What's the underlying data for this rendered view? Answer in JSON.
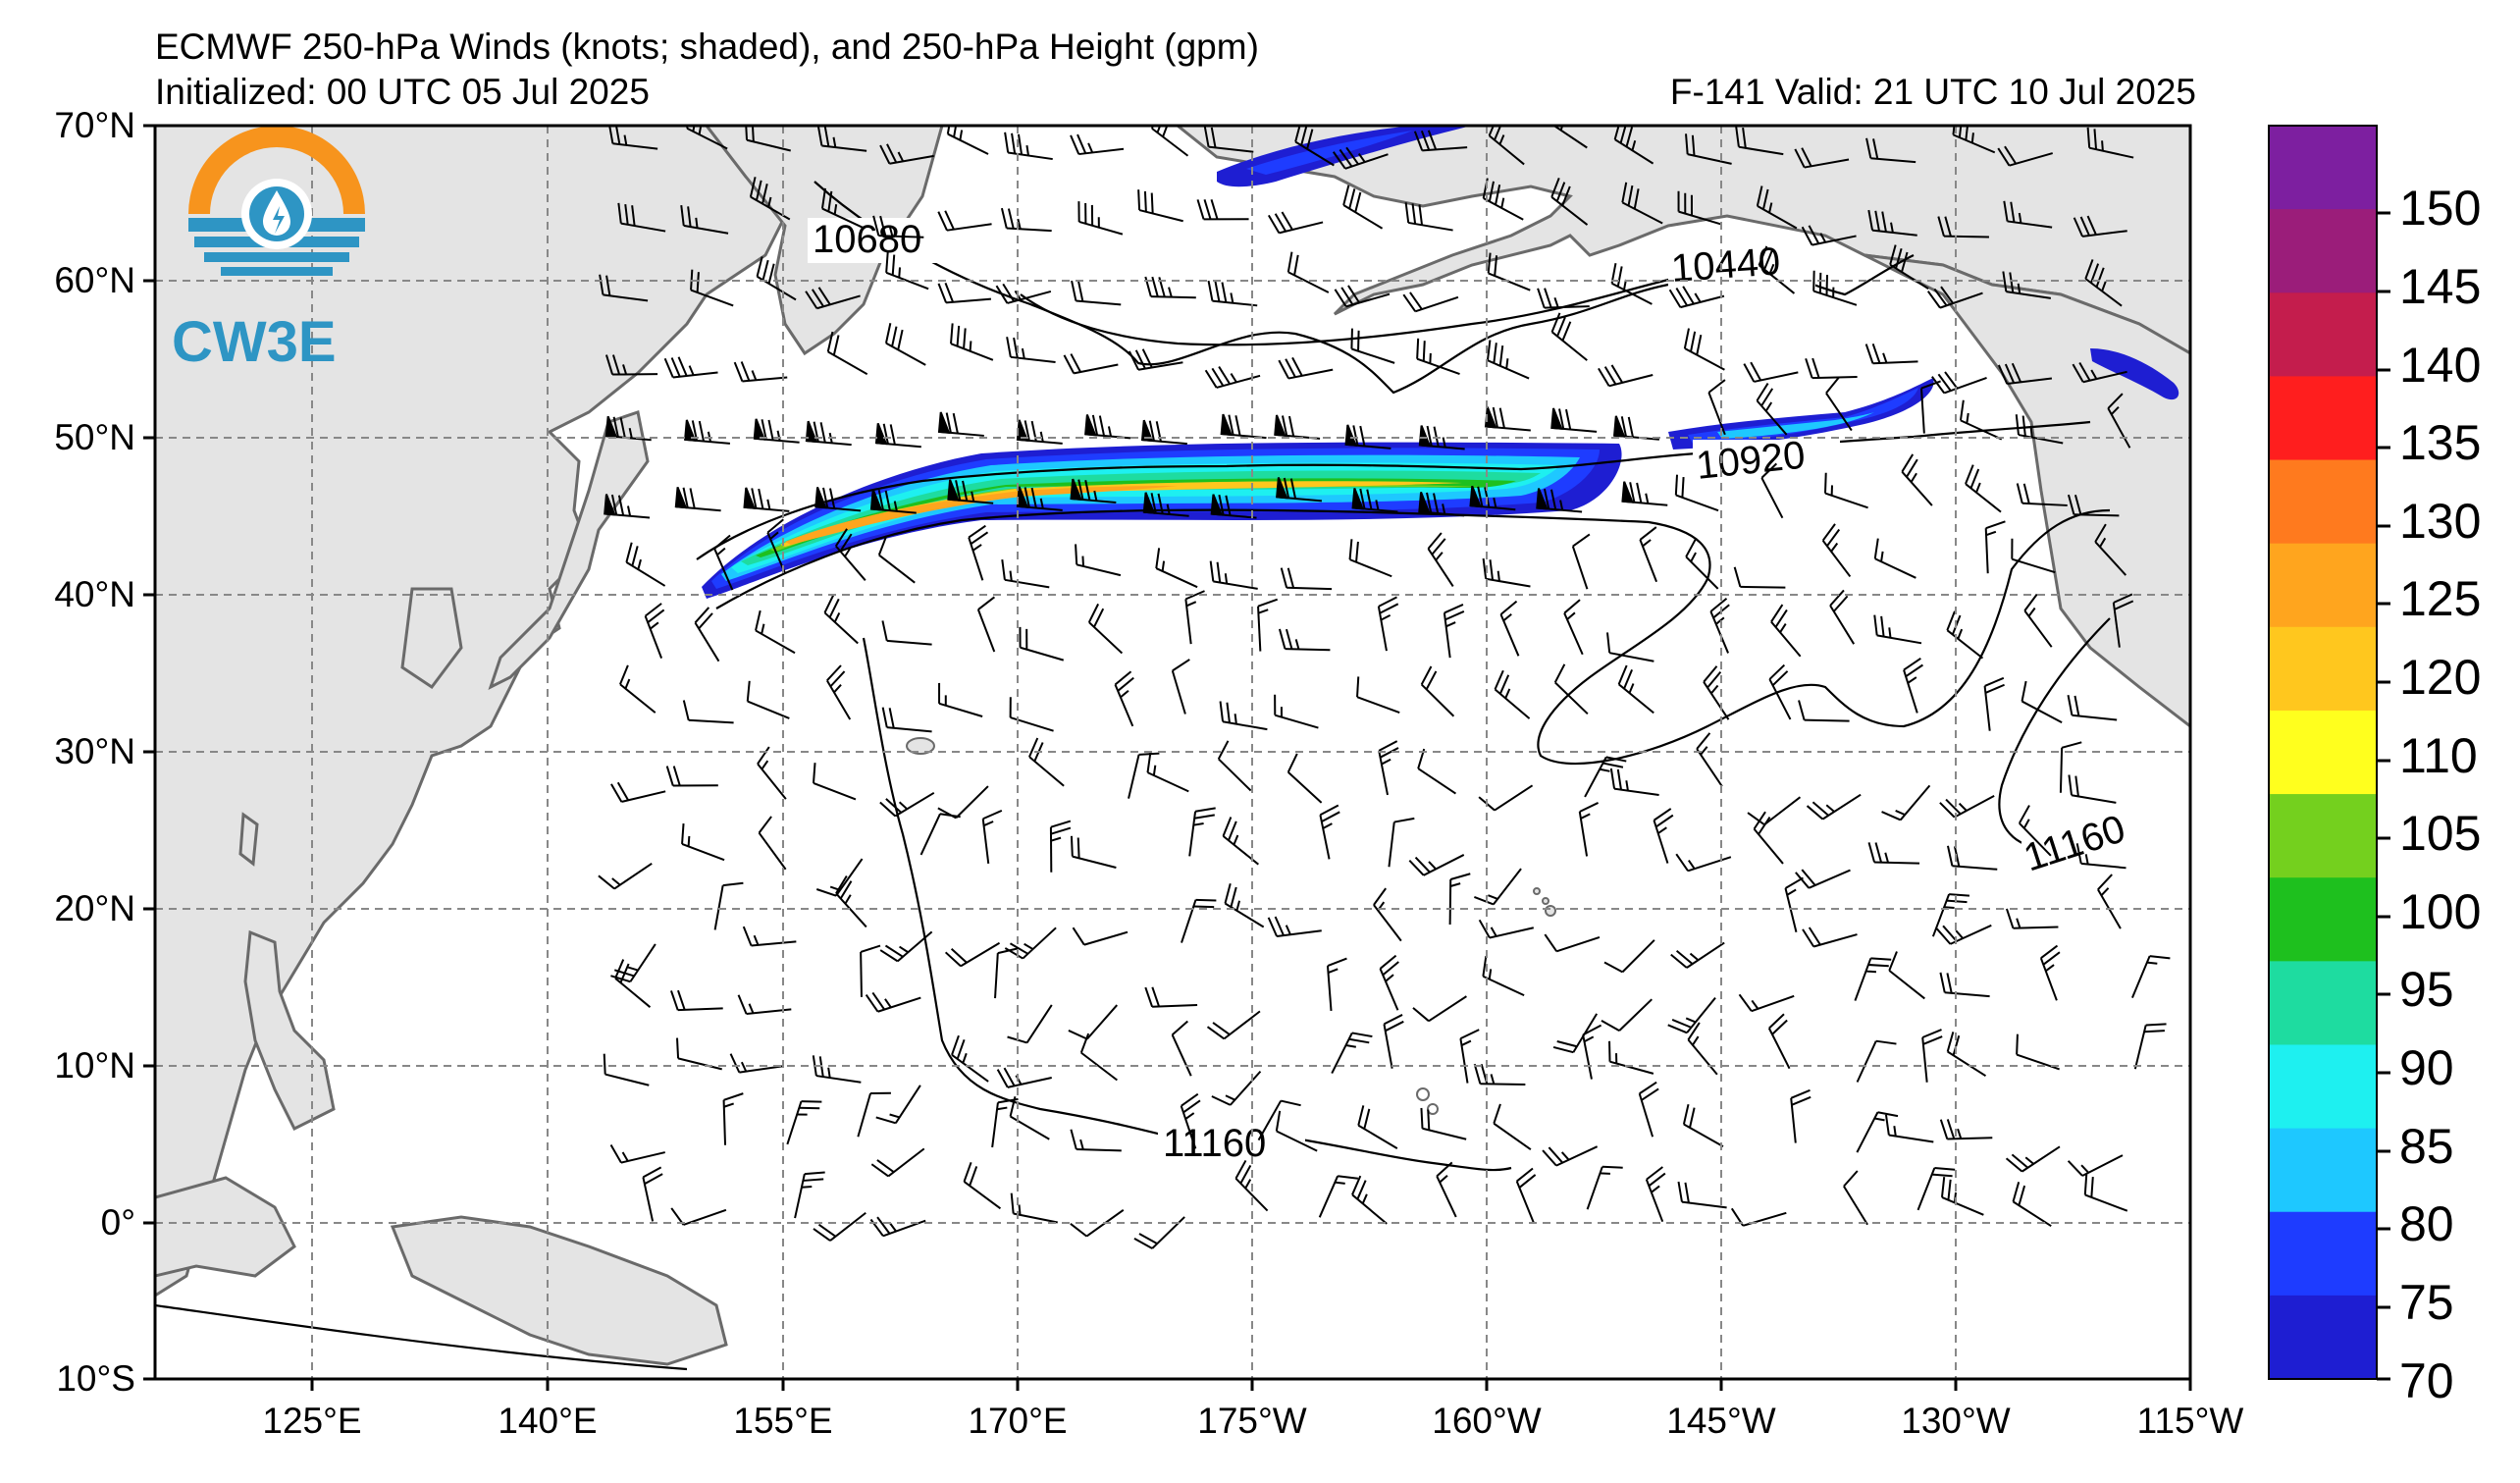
{
  "header": {
    "title": "ECMWF 250-hPa Winds (knots; shaded), and 250-hPa Height (gpm)",
    "initialized": "Initialized: 00 UTC 05 Jul 2025",
    "valid": "F-141  Valid: 21 UTC 10 Jul 2025"
  },
  "logo": {
    "text": "CW3E",
    "icon": "cw3e-sun-drop-logo-icon"
  },
  "axes": {
    "lat_labels": [
      "70°N",
      "60°N",
      "50°N",
      "40°N",
      "30°N",
      "20°N",
      "10°N",
      "0°",
      "10°S"
    ],
    "lon_labels": [
      "125°E",
      "140°E",
      "155°E",
      "170°E",
      "175°W",
      "160°W",
      "145°W",
      "130°W",
      "115°W"
    ]
  },
  "contours": {
    "labels": [
      "10680",
      "10440",
      "10920",
      "11160",
      "11160"
    ]
  },
  "colorbar": {
    "labels": [
      "150",
      "145",
      "140",
      "135",
      "130",
      "125",
      "120",
      "110",
      "105",
      "100",
      "95",
      "90",
      "85",
      "80",
      "75",
      "70"
    ],
    "colors": [
      "#7d1fa0",
      "#9b1d7a",
      "#c41d4d",
      "#ff1e1e",
      "#ff7a1e",
      "#ffa51e",
      "#ffc71e",
      "#ffff1e",
      "#74d01e",
      "#1ec01e",
      "#1edca0",
      "#1ef0f0",
      "#1ec8ff",
      "#1e3cff",
      "#1e1ed2"
    ]
  },
  "map": {
    "land_color": "#e4e4e4",
    "ocean_color": "#ffffff",
    "coast_color": "#6a6a6a",
    "grid_color": "#888888"
  }
}
